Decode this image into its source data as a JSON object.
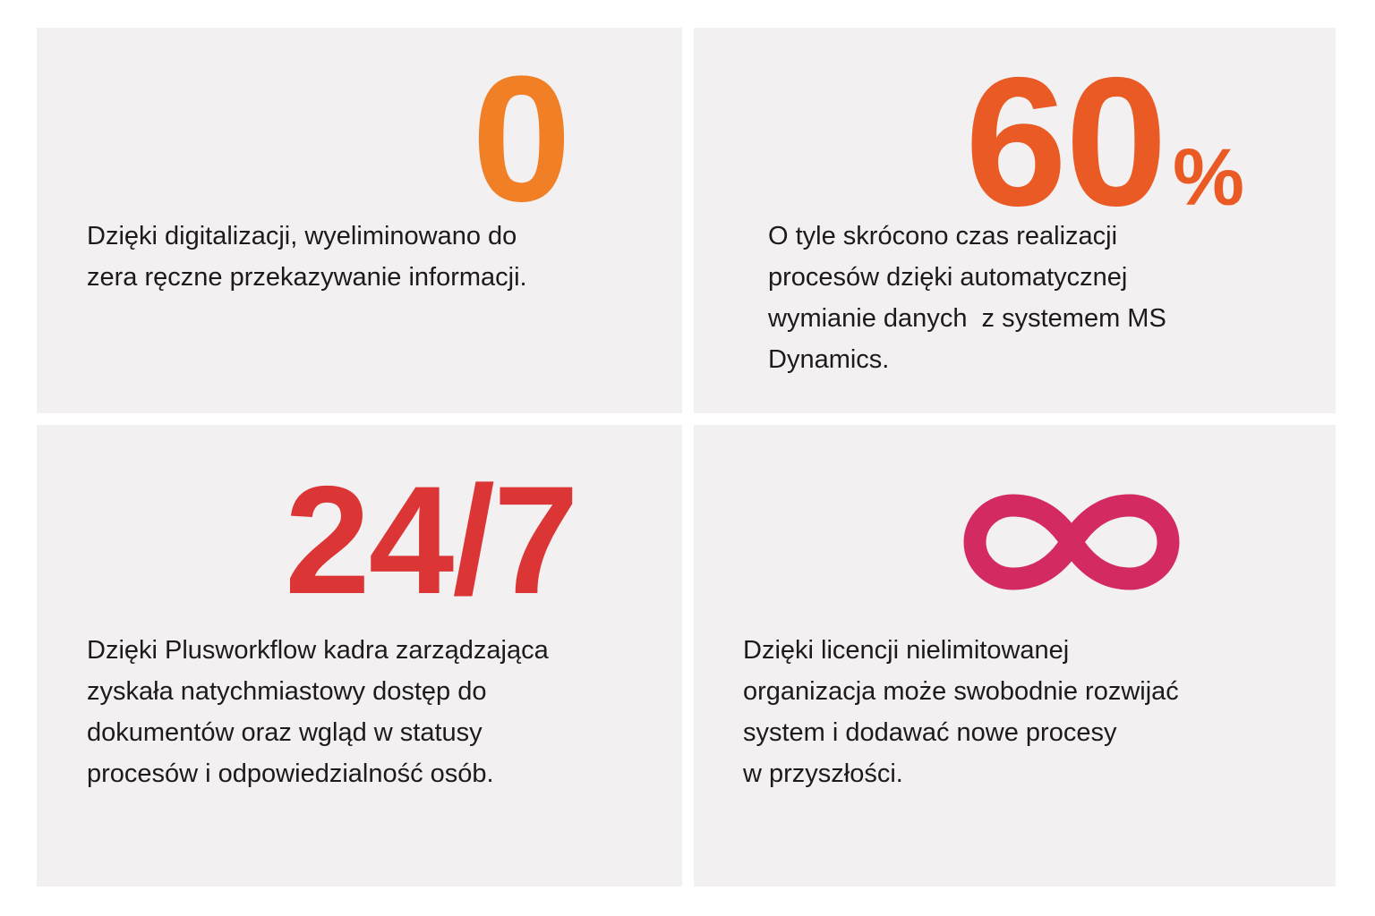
{
  "colors": {
    "orange": "#f07f25",
    "deep_orange": "#ea5a24",
    "red": "#dc3535",
    "pink": "#d42a62"
  },
  "cards": [
    {
      "stat": "0",
      "lines": [
        "Dzięki digitalizacji, wyeliminowano do",
        "zera ręczne przekazywanie informacji."
      ]
    },
    {
      "stat": "60",
      "unit": "%",
      "lines": [
        "O tyle skrócono czas realizacji",
        "procesów dzięki automatycznej",
        "wymianie danych  z systemem MS",
        "Dynamics."
      ]
    },
    {
      "stat": "24/7",
      "lines": [
        "Dzięki Plusworkflow kadra zarządzająca",
        "zyskała natychmiastowy dostęp do",
        "dokumentów oraz wgląd w statusy",
        "procesów i odpowiedzialność osób."
      ]
    },
    {
      "stat_icon": "infinity-icon",
      "lines": [
        "Dzięki licencji nielimitowanej",
        "organizacja może swobodnie rozwijać",
        "system i dodawać nowe procesy",
        "w przyszłości."
      ]
    }
  ]
}
